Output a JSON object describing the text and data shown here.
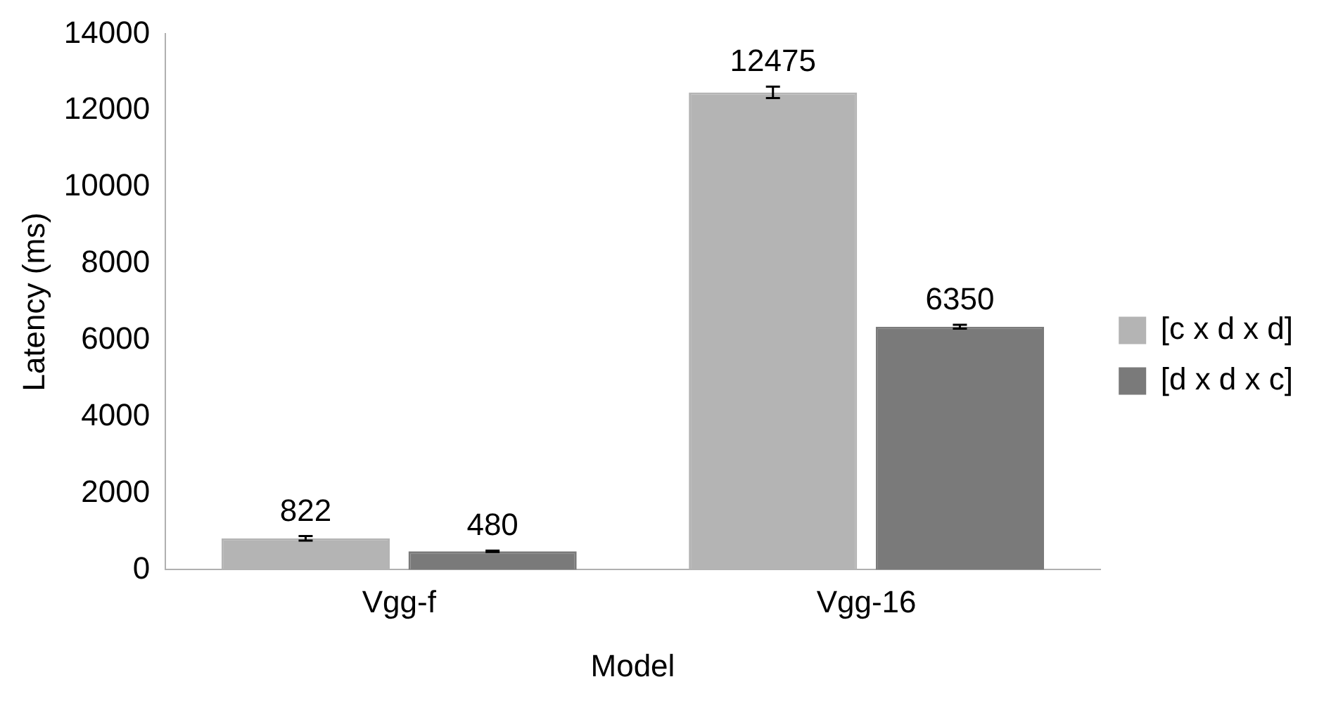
{
  "chart_data": {
    "type": "bar",
    "xlabel": "Model",
    "ylabel": "Latency (ms)",
    "categories": [
      "Vgg-f",
      "Vgg-16"
    ],
    "series": [
      {
        "name": "[c x d x d]",
        "color": "#b4b4b4",
        "values": [
          822,
          12475
        ],
        "errors": [
          60,
          150
        ]
      },
      {
        "name": "[d x d x c]",
        "color": "#7a7a7a",
        "values": [
          480,
          6350
        ],
        "errors": [
          20,
          50
        ]
      }
    ],
    "ylim": [
      0,
      14000
    ],
    "yticks": [
      0,
      2000,
      4000,
      6000,
      8000,
      10000,
      12000,
      14000
    ],
    "grid": false,
    "legend": "right",
    "data_labels": true
  }
}
